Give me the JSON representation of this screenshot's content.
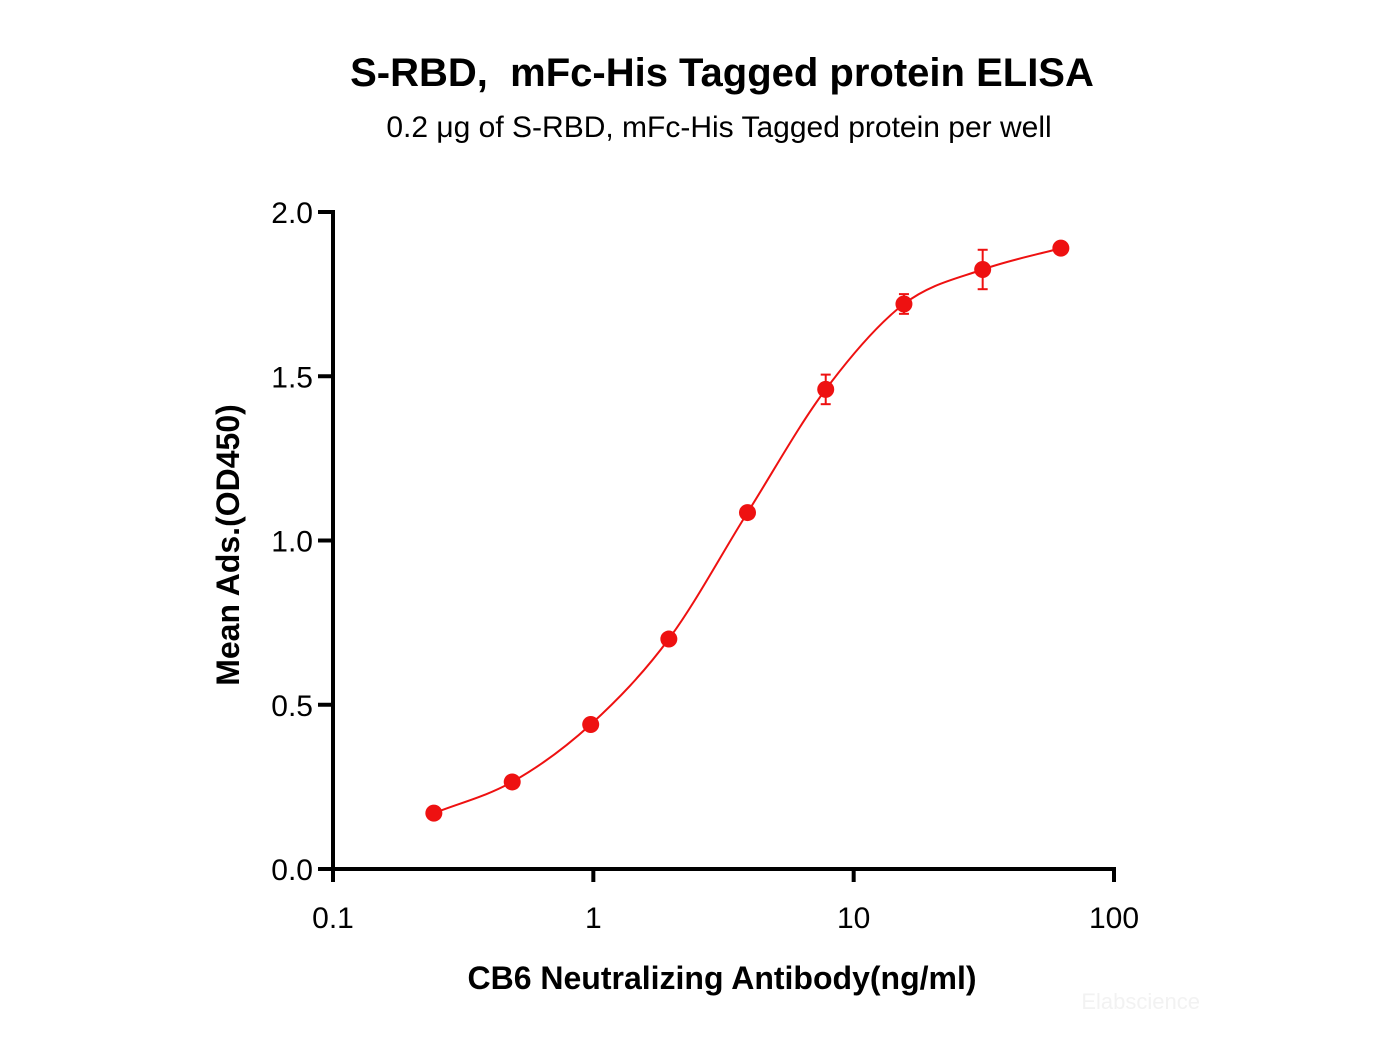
{
  "chart_data": {
    "type": "scatter",
    "title": "S-RBD,  mFc-His Tagged protein ELISA",
    "subtitle": "0.2 μg of S-RBD, mFc-His Tagged protein per well",
    "xlabel": "CB6 Neutralizing Antibody(ng/ml)",
    "ylabel": "Mean Ads.(OD450)",
    "xscale": "log",
    "xlim": [
      0.1,
      100
    ],
    "ylim": [
      0.0,
      2.0
    ],
    "xticks": [
      0.1,
      1,
      10,
      100
    ],
    "xtick_labels": [
      "0.1",
      "1",
      "10",
      "100"
    ],
    "yticks": [
      0.0,
      0.5,
      1.0,
      1.5,
      2.0
    ],
    "ytick_labels": [
      "0.0",
      "0.5",
      "1.0",
      "1.5",
      "2.0"
    ],
    "grid": false,
    "color": "#ee1111",
    "series": [
      {
        "x": [
          0.244,
          0.488,
          0.977,
          1.95,
          3.91,
          7.81,
          15.6,
          31.3,
          62.5
        ],
        "y": [
          0.17,
          0.265,
          0.44,
          0.7,
          1.085,
          1.46,
          1.72,
          1.825,
          1.89
        ],
        "error": [
          0.01,
          0.01,
          0.01,
          0.01,
          0.015,
          0.045,
          0.03,
          0.06,
          0.01
        ],
        "fit": "4PL"
      }
    ],
    "watermark": "Elabscience"
  }
}
